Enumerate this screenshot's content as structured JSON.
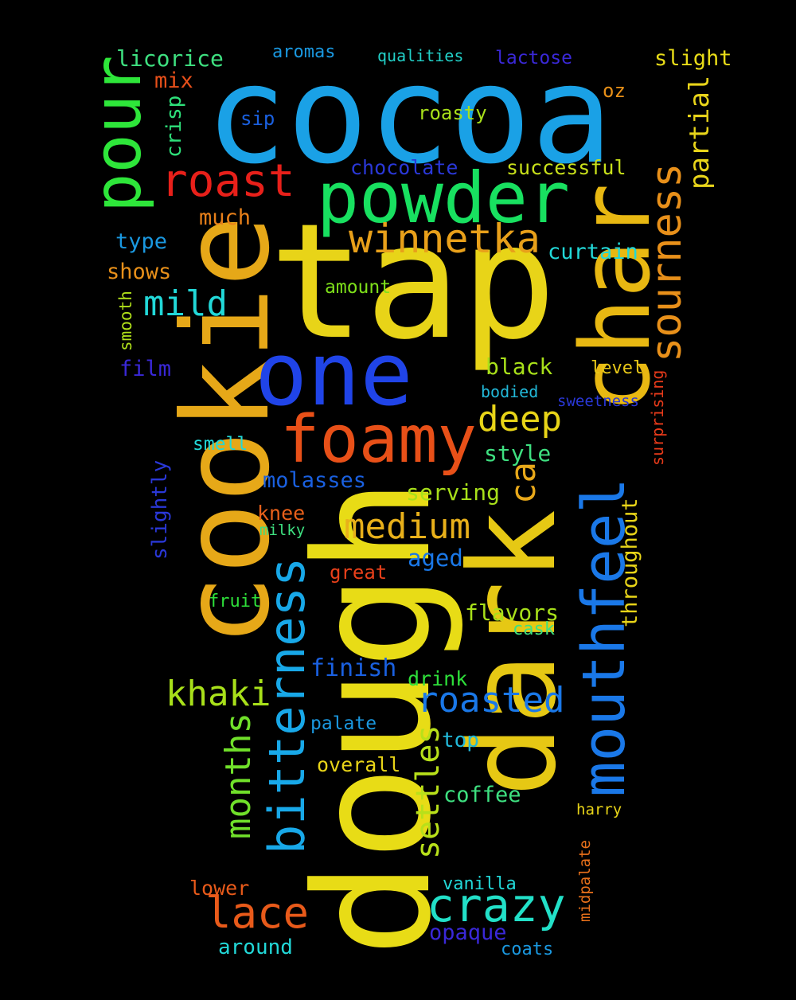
{
  "background": "#000000",
  "words": [
    {
      "text": "cocoa",
      "color": "#1aa1e6"
    },
    {
      "text": "tap",
      "color": "#e8d418"
    },
    {
      "text": "dough",
      "color": "#e8dc16"
    },
    {
      "text": "dark",
      "color": "#e6c814"
    },
    {
      "text": "cookie",
      "color": "#e6a818"
    },
    {
      "text": "one",
      "color": "#2044e8"
    },
    {
      "text": "char",
      "color": "#e8b812"
    },
    {
      "text": "powder",
      "color": "#18e060"
    },
    {
      "text": "foamy",
      "color": "#e85018"
    },
    {
      "text": "pour",
      "color": "#2ee63a"
    },
    {
      "text": "roast",
      "color": "#e8201a"
    },
    {
      "text": "mouthfeel",
      "color": "#1a78e8"
    },
    {
      "text": "bitterness",
      "color": "#18a8e8"
    },
    {
      "text": "winnetka",
      "color": "#e8a01a"
    },
    {
      "text": "sourness",
      "color": "#e8901a"
    },
    {
      "text": "crazy",
      "color": "#22e0c8"
    },
    {
      "text": "lace",
      "color": "#e85a1a"
    },
    {
      "text": "medium",
      "color": "#e8b01a"
    },
    {
      "text": "months",
      "color": "#70e02a"
    },
    {
      "text": "khaki",
      "color": "#a8e01a"
    },
    {
      "text": "roasted",
      "color": "#1a78e8"
    },
    {
      "text": "mild",
      "color": "#22d8d8"
    },
    {
      "text": "deep",
      "color": "#e8d418"
    },
    {
      "text": "settles",
      "color": "#b8e01a"
    },
    {
      "text": "ca",
      "color": "#e8a81a"
    },
    {
      "text": "partial",
      "color": "#e8d41a"
    },
    {
      "text": "licorice",
      "color": "#3ee080"
    },
    {
      "text": "aromas",
      "color": "#1a98e0"
    },
    {
      "text": "qualities",
      "color": "#22d0c8"
    },
    {
      "text": "lactose",
      "color": "#3a28d8"
    },
    {
      "text": "slight",
      "color": "#e8dc18"
    },
    {
      "text": "mix",
      "color": "#e8501a"
    },
    {
      "text": "oz",
      "color": "#e89018"
    },
    {
      "text": "crisp",
      "color": "#2ee07a"
    },
    {
      "text": "sip",
      "color": "#1a60e0"
    },
    {
      "text": "roasty",
      "color": "#a8e01a"
    },
    {
      "text": "chocolate",
      "color": "#2a38d8"
    },
    {
      "text": "successful",
      "color": "#c8e01a"
    },
    {
      "text": "much",
      "color": "#e8801a"
    },
    {
      "text": "type",
      "color": "#1a98e0"
    },
    {
      "text": "curtain",
      "color": "#22d8d8"
    },
    {
      "text": "shows",
      "color": "#e8901a"
    },
    {
      "text": "amount",
      "color": "#7ee01a"
    },
    {
      "text": "smooth",
      "color": "#b0e01a"
    },
    {
      "text": "film",
      "color": "#3a28d8"
    },
    {
      "text": "black",
      "color": "#a8e01a"
    },
    {
      "text": "level",
      "color": "#e8c818"
    },
    {
      "text": "bodied",
      "color": "#22b8d8"
    },
    {
      "text": "sweetness",
      "color": "#2a38d8"
    },
    {
      "text": "surprising",
      "color": "#e83a1a"
    },
    {
      "text": "smell",
      "color": "#22d8d8"
    },
    {
      "text": "style",
      "color": "#3ee080"
    },
    {
      "text": "molasses",
      "color": "#1a60e0"
    },
    {
      "text": "slightly",
      "color": "#2a38d8"
    },
    {
      "text": "knee",
      "color": "#e8601a"
    },
    {
      "text": "serving",
      "color": "#a8e01a"
    },
    {
      "text": "milky",
      "color": "#3ee080"
    },
    {
      "text": "aged",
      "color": "#1a78e8"
    },
    {
      "text": "great",
      "color": "#e8401a"
    },
    {
      "text": "throughout",
      "color": "#e8d418"
    },
    {
      "text": "fruit",
      "color": "#2ee03a"
    },
    {
      "text": "flavors",
      "color": "#a8e01a"
    },
    {
      "text": "cask",
      "color": "#3ee080"
    },
    {
      "text": "finish",
      "color": "#1a60e0"
    },
    {
      "text": "drink",
      "color": "#2ee03a"
    },
    {
      "text": "palate",
      "color": "#1a98e0"
    },
    {
      "text": "top",
      "color": "#22b8d8"
    },
    {
      "text": "overall",
      "color": "#e8d418"
    },
    {
      "text": "coffee",
      "color": "#3ee080"
    },
    {
      "text": "harry",
      "color": "#e8d418"
    },
    {
      "text": "midpalate",
      "color": "#e8701a"
    },
    {
      "text": "lower",
      "color": "#e85a1a"
    },
    {
      "text": "vanilla",
      "color": "#22d8d8"
    },
    {
      "text": "opaque",
      "color": "#3a28d8"
    },
    {
      "text": "around",
      "color": "#22d8d8"
    },
    {
      "text": "coats",
      "color": "#1a98e0"
    }
  ]
}
